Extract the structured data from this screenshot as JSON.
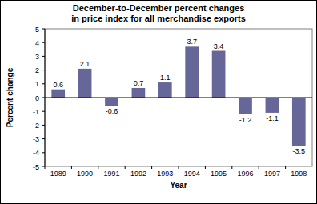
{
  "chart_data": {
    "type": "bar",
    "title": "December-to-December percent changes",
    "subtitle": "in price index for all merchandise exports",
    "x_label": "Year",
    "y_label": "Percent change",
    "categories": [
      "1989",
      "1990",
      "1991",
      "1992",
      "1993",
      "1994",
      "1995",
      "1996",
      "1997",
      "1998"
    ],
    "values": [
      0.6,
      2.1,
      -0.6,
      0.7,
      1.1,
      3.7,
      3.4,
      -1.2,
      -1.1,
      -3.5
    ],
    "color": "#666699",
    "ylim": [
      -5,
      5
    ],
    "yticks": [
      -5,
      -4,
      -3,
      -2,
      -1,
      0,
      1,
      2,
      3,
      4,
      5
    ],
    "grid": false,
    "data_labels": true
  }
}
